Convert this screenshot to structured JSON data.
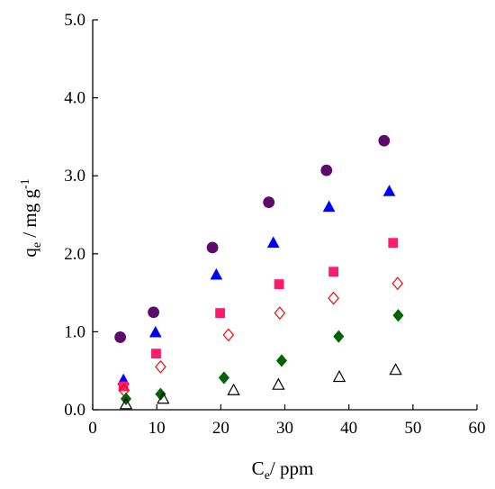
{
  "chart_data": {
    "type": "scatter",
    "title": "",
    "xlabel": {
      "main": "C",
      "sub": "e",
      "rest": "/ ppm"
    },
    "ylabel": {
      "main": "q",
      "sub": "e",
      "rest": " / mg g",
      "sup": "-1"
    },
    "xlim": [
      0,
      60
    ],
    "ylim": [
      0,
      5
    ],
    "xticks": [
      "0",
      "10",
      "20",
      "30",
      "40",
      "50",
      "60"
    ],
    "yticks": [
      "0.0",
      "1.0",
      "2.0",
      "3.0",
      "4.0",
      "5.0"
    ],
    "grid": false,
    "legend": "none",
    "series": [
      {
        "marker": "circle-filled",
        "color": "#5c0a6b",
        "x": [
          4.3,
          9.5,
          18.7,
          27.5,
          36.5,
          45.5
        ],
        "y": [
          0.93,
          1.25,
          2.08,
          2.66,
          3.07,
          3.45
        ]
      },
      {
        "marker": "triangle-filled",
        "color": "#0000ff",
        "x": [
          4.8,
          9.8,
          19.3,
          28.2,
          36.9,
          46.3
        ],
        "y": [
          0.38,
          0.99,
          1.73,
          2.14,
          2.6,
          2.8
        ]
      },
      {
        "marker": "square-filled",
        "color": "#ff1a6e",
        "x": [
          4.8,
          9.9,
          19.9,
          29.1,
          37.6,
          46.9
        ],
        "y": [
          0.3,
          0.72,
          1.24,
          1.61,
          1.77,
          2.14
        ]
      },
      {
        "marker": "diamond-open",
        "color": "#ff0000",
        "x": [
          4.9,
          10.6,
          21.2,
          29.2,
          37.6,
          47.6
        ],
        "y": [
          0.25,
          0.55,
          0.96,
          1.24,
          1.43,
          1.62
        ]
      },
      {
        "marker": "diamond-filled",
        "color": "#006400",
        "x": [
          5.2,
          10.6,
          20.5,
          29.5,
          38.4,
          47.7
        ],
        "y": [
          0.14,
          0.2,
          0.41,
          0.63,
          0.94,
          1.21
        ]
      },
      {
        "marker": "triangle-open",
        "color": "#000000",
        "x": [
          5.2,
          11.0,
          22.0,
          29.0,
          38.5,
          47.3
        ],
        "y": [
          0.07,
          0.14,
          0.25,
          0.32,
          0.42,
          0.51
        ]
      }
    ]
  }
}
